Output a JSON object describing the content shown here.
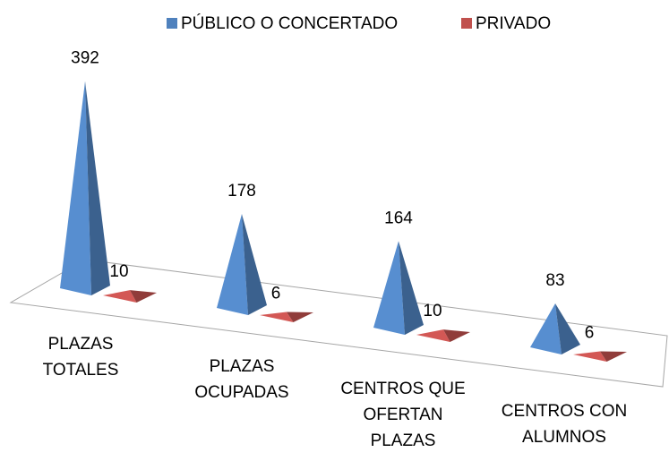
{
  "chart_data": {
    "type": "pyramid",
    "categories": [
      [
        "PLAZAS",
        "TOTALES"
      ],
      [
        "PLAZAS",
        "OCUPADAS"
      ],
      [
        "CENTROS QUE",
        "OFERTAN",
        "PLAZAS"
      ],
      [
        "CENTROS CON",
        "ALUMNOS"
      ]
    ],
    "series": [
      {
        "name": "PÚBLICO O CONCERTADO",
        "color": "#4f81bd",
        "values": [
          392,
          178,
          164,
          83
        ]
      },
      {
        "name": "PRIVADO",
        "color": "#c0504d",
        "values": [
          10,
          6,
          10,
          6
        ]
      }
    ],
    "legend": "top"
  }
}
